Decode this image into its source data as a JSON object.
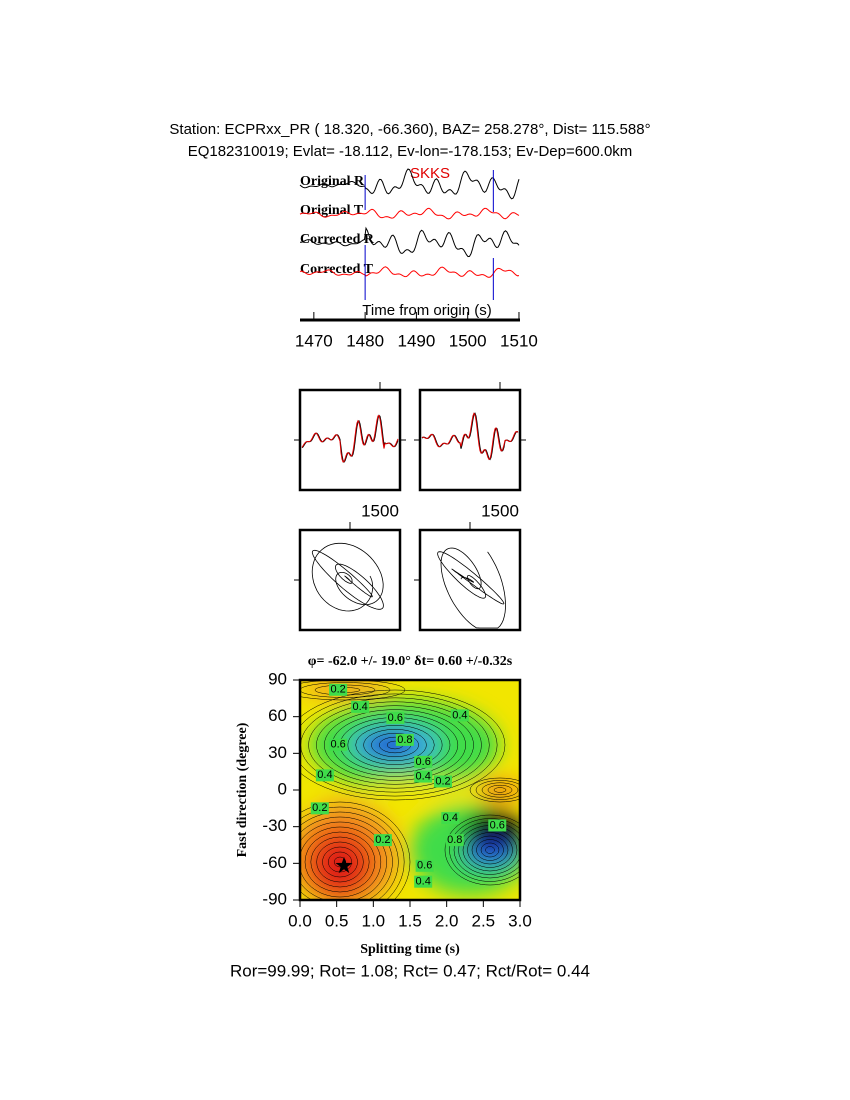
{
  "header": {
    "line1": "Station: ECPRxx_PR (  18.320,  -66.360), BAZ=  258.278°, Dist=  115.588°",
    "line2": "EQ182310019; Evlat= -18.112, Ev-lon=-178.153; Ev-Dep=600.0km"
  },
  "chart_data": [
    {
      "type": "waveform",
      "phase": "SKKS",
      "traces": [
        {
          "name": "Original R",
          "color": "#000000"
        },
        {
          "name": "Original T",
          "color": "#ff0000"
        },
        {
          "name": "Corrected R",
          "color": "#000000"
        },
        {
          "name": "Corrected T",
          "color": "#ff0000"
        }
      ],
      "window": [
        1480,
        1505
      ],
      "window_color": "#0000cc",
      "xlabel": "Time from origin (s)",
      "xlim": [
        1467.3,
        1510.2
      ],
      "xticks": [
        1470,
        1480,
        1490,
        1500,
        1510
      ]
    },
    {
      "type": "overlay",
      "xlim": [
        1476,
        1506
      ],
      "xticks": [
        1500
      ]
    },
    {
      "type": "overlay",
      "xlim": [
        1476,
        1506
      ],
      "xticks": [
        1500
      ]
    },
    {
      "type": "contour",
      "title": "φ= -62.0 +/- 19.0° δt= 0.60 +/-0.32s",
      "xlabel": "Splitting time (s)",
      "ylabel": "Fast direction (degree)",
      "xlim": [
        0,
        3
      ],
      "ylim": [
        -90,
        90
      ],
      "xticks": [
        {
          "value": 0,
          "label": "0.0"
        },
        0.5,
        {
          "value": 1,
          "label": "1.0"
        },
        1.5,
        {
          "value": 2,
          "label": "2.0"
        },
        2.5,
        {
          "value": 3,
          "label": "3.0"
        }
      ],
      "yticks": [
        -90,
        -60,
        -30,
        0,
        30,
        60,
        90
      ],
      "best": {
        "x": 0.6,
        "y": -62
      },
      "contour_labels": [
        {
          "value": 0.2,
          "x": 0.52,
          "y": 82
        },
        {
          "value": 0.4,
          "x": 0.82,
          "y": 68
        },
        {
          "value": 0.6,
          "x": 1.3,
          "y": 59
        },
        {
          "value": 0.4,
          "x": 2.18,
          "y": 61
        },
        {
          "value": 0.6,
          "x": 0.52,
          "y": 37
        },
        {
          "value": 0.8,
          "x": 1.43,
          "y": 41
        },
        {
          "value": 0.4,
          "x": 0.34,
          "y": 12
        },
        {
          "value": 0.6,
          "x": 1.68,
          "y": 23
        },
        {
          "value": 0.4,
          "x": 1.68,
          "y": 11
        },
        {
          "value": 0.2,
          "x": 1.95,
          "y": 7
        },
        {
          "value": 0.2,
          "x": 0.27,
          "y": -15
        },
        {
          "value": 0.4,
          "x": 2.05,
          "y": -23
        },
        {
          "value": 0.6,
          "x": 2.69,
          "y": -29
        },
        {
          "value": 0.8,
          "x": 2.11,
          "y": -41
        },
        {
          "value": 0.2,
          "x": 1.13,
          "y": -41
        },
        {
          "value": 0.6,
          "x": 1.7,
          "y": -62
        },
        {
          "value": 0.4,
          "x": 1.68,
          "y": -75
        }
      ]
    }
  ],
  "footer": "Ror=99.99; Rot= 1.08; Rct= 0.47; Rct/Rot= 0.44"
}
